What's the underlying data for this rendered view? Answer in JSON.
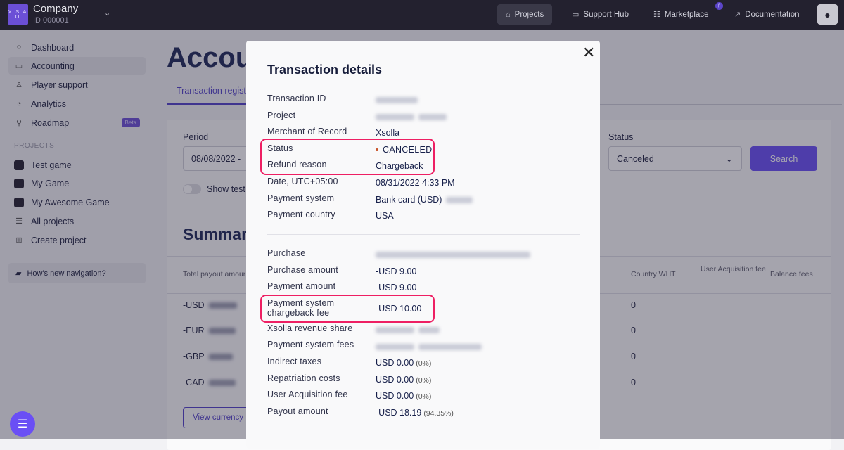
{
  "topbar": {
    "company": "Company",
    "company_id": "ID 000001",
    "logo_text": "X S A O",
    "nav": [
      {
        "label": "Projects",
        "icon": "home-icon",
        "active": true
      },
      {
        "label": "Support Hub",
        "icon": "chat-bubble-icon"
      },
      {
        "label": "Marketplace",
        "icon": "list-icon",
        "badge": "β"
      },
      {
        "label": "Documentation",
        "icon": "external-link-icon"
      }
    ]
  },
  "sidebar": {
    "items": [
      {
        "label": "Dashboard",
        "icon": "grid-icon"
      },
      {
        "label": "Accounting",
        "icon": "folder-icon",
        "active": true
      },
      {
        "label": "Player support",
        "icon": "user-icon"
      },
      {
        "label": "Analytics",
        "icon": "pie-chart-icon"
      },
      {
        "label": "Roadmap",
        "icon": "signpost-icon",
        "badge": "Beta"
      }
    ],
    "projects_heading": "PROJECTS",
    "projects": [
      {
        "label": "Test game"
      },
      {
        "label": "My Game"
      },
      {
        "label": "My Awesome Game"
      },
      {
        "label": "All projects",
        "icon": "list-icon"
      },
      {
        "label": "Create project",
        "icon": "plus-icon"
      }
    ],
    "feedback": "How's new navigation?"
  },
  "main": {
    "title": "Accounting",
    "tab": "Transaction registry",
    "period_label": "Period",
    "period_value": "08/08/2022 -",
    "status_label": "Status",
    "status_value": "Canceled",
    "search_label": "Search",
    "show_test": "Show test",
    "summary_title": "Summary",
    "columns": [
      "Total payout amount",
      "Country WHT",
      "User Acquisition fee",
      "Balance fees"
    ],
    "rows": [
      {
        "currency": "-USD",
        "country_wht": "0"
      },
      {
        "currency": "-EUR",
        "country_wht": "0"
      },
      {
        "currency": "-GBP",
        "country_wht": "0"
      },
      {
        "currency": "-CAD",
        "country_wht": "0"
      }
    ],
    "view_currency": "View currency"
  },
  "modal": {
    "title": "Transaction details",
    "section1": [
      {
        "label": "Transaction ID"
      },
      {
        "label": "Project"
      },
      {
        "label": "Merchant of Record",
        "value": "Xsolla"
      },
      {
        "label": "Status",
        "value": "CANCELED"
      },
      {
        "label": "Refund reason",
        "value": "Chargeback"
      },
      {
        "label": "Date, UTC+05:00",
        "value": "08/31/2022 4:33 PM"
      },
      {
        "label": "Payment system",
        "value": "Bank card (USD)"
      },
      {
        "label": "Payment country",
        "value": "USA"
      }
    ],
    "section2": [
      {
        "label": "Purchase"
      },
      {
        "label": "Purchase amount",
        "value": "-USD 9.00"
      },
      {
        "label": "Payment amount",
        "value": "-USD 9.00"
      },
      {
        "label": "Payment system chargeback fee",
        "value": "-USD 10.00"
      },
      {
        "label": "Xsolla revenue share"
      },
      {
        "label": "Payment system fees"
      },
      {
        "label": "Indirect taxes",
        "value": "USD 0.00",
        "pct": "(0%)"
      },
      {
        "label": "Repatriation costs",
        "value": "USD 0.00",
        "pct": "(0%)"
      },
      {
        "label": "User Acquisition fee",
        "value": "USD 0.00",
        "pct": "(0%)"
      },
      {
        "label": "Payout amount",
        "value": "-USD 18.19",
        "pct": "(94.35%)"
      }
    ]
  },
  "colors": {
    "accent": "#6a4ff5",
    "highlight": "#ee1f63",
    "status_canceled": "#c8542a"
  }
}
